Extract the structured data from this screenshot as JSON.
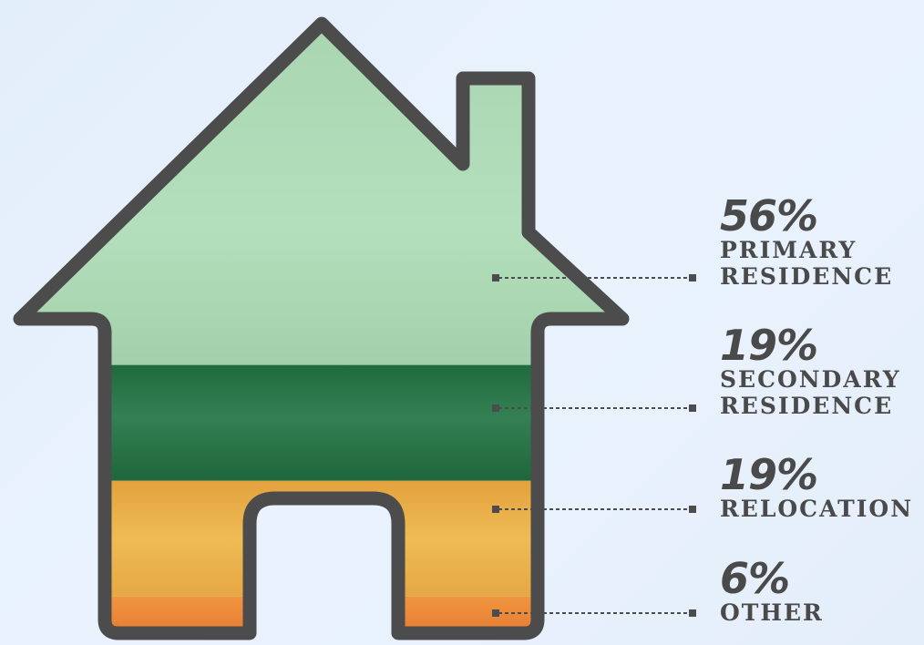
{
  "chart_data": {
    "type": "stacked-area",
    "categories": [
      "PRIMARY RESIDENCE",
      "SECONDARY RESIDENCE",
      "RELOCATION",
      "OTHER"
    ],
    "values": [
      56,
      19,
      19,
      6
    ],
    "labels": [
      {
        "pct": "56%",
        "line1": "PRIMARY",
        "line2": "RESIDENCE"
      },
      {
        "pct": "19%",
        "line1": "SECONDARY",
        "line2": "RESIDENCE"
      },
      {
        "pct": "19%",
        "line1": "RELOCATION",
        "line2": ""
      },
      {
        "pct": "6%",
        "line1": "OTHER",
        "line2": ""
      }
    ],
    "colors": [
      "#aed9b4",
      "#2b7a4c",
      "#ecb34c",
      "#ec8a3c"
    ],
    "outline_color": "#4c4c4c",
    "legend": "right"
  }
}
